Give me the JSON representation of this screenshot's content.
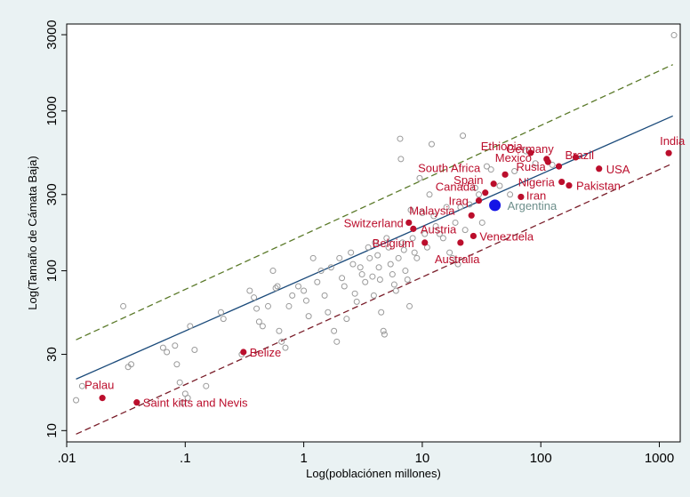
{
  "chart_data": {
    "type": "scatter",
    "xlabel": "Log(poblaciónen millones)",
    "ylabel": "Log(Tamaño de Cámata Baja)",
    "xscale": "log",
    "yscale": "log",
    "xlim": [
      0.01,
      1500
    ],
    "ylim": [
      8.5,
      3500
    ],
    "x_ticks": [
      {
        "value": 0.01,
        "label": ".01"
      },
      {
        "value": 0.1,
        "label": ".1"
      },
      {
        "value": 1,
        "label": "1"
      },
      {
        "value": 10,
        "label": "10"
      },
      {
        "value": 100,
        "label": "100"
      },
      {
        "value": 1000,
        "label": "1000"
      }
    ],
    "y_ticks": [
      {
        "value": 10,
        "label": "10"
      },
      {
        "value": 30,
        "label": "30"
      },
      {
        "value": 100,
        "label": "100"
      },
      {
        "value": 300,
        "label": "300"
      },
      {
        "value": 1000,
        "label": "1000"
      },
      {
        "value": 3000,
        "label": "3000"
      }
    ],
    "grid": false,
    "colors": {
      "background": "#eaf2f3",
      "plot_background": "#ffffff",
      "other_points": "#9a9a9a",
      "labeled_points": "#bb0e2c",
      "highlight_point": "#1414e6",
      "highlight_label": "#6d8f8b",
      "fit_line": "#1a4a7a",
      "upper_line": "#5b7a2a",
      "lower_line": "#7a1e2a"
    },
    "lines": [
      {
        "style": "solid",
        "x": [
          0.012,
          1300
        ],
        "y": [
          21,
          930
        ]
      },
      {
        "style": "dashed",
        "x": [
          0.012,
          1300
        ],
        "y": [
          37,
          1950
        ]
      },
      {
        "style": "dashed",
        "x": [
          0.012,
          1300
        ],
        "y": [
          9.5,
          470
        ]
      }
    ],
    "labeled_points": [
      {
        "name": "India",
        "x": 1200,
        "y": 545
      },
      {
        "name": "Ethiopia",
        "x": 82,
        "y": 547
      },
      {
        "name": "Germany",
        "x": 115,
        "y": 480
      },
      {
        "name": "Mexico",
        "x": 112,
        "y": 500
      },
      {
        "name": "Brazil",
        "x": 197,
        "y": 513
      },
      {
        "name": "Rusia",
        "x": 142,
        "y": 450
      },
      {
        "name": "USA",
        "x": 310,
        "y": 435
      },
      {
        "name": "South Africa",
        "x": 50,
        "y": 400
      },
      {
        "name": "Nigeria",
        "x": 150,
        "y": 360
      },
      {
        "name": "Pakistan",
        "x": 173,
        "y": 342
      },
      {
        "name": "Spain",
        "x": 40,
        "y": 350
      },
      {
        "name": "Canada",
        "x": 34,
        "y": 308
      },
      {
        "name": "Iran",
        "x": 68,
        "y": 290
      },
      {
        "name": "Iraq",
        "x": 30,
        "y": 275
      },
      {
        "name": "Malaysia",
        "x": 26,
        "y": 222
      },
      {
        "name": "Switzerland",
        "x": 7.7,
        "y": 200
      },
      {
        "name": "Austria",
        "x": 8.4,
        "y": 183
      },
      {
        "name": "Venezuela",
        "x": 27,
        "y": 165
      },
      {
        "name": "Belgium",
        "x": 10.5,
        "y": 150
      },
      {
        "name": "Australia",
        "x": 21,
        "y": 150
      },
      {
        "name": "Belize",
        "x": 0.31,
        "y": 31
      },
      {
        "name": "Palau",
        "x": 0.02,
        "y": 16
      },
      {
        "name": "Saint kitts and Nevis",
        "x": 0.039,
        "y": 15
      }
    ],
    "highlight_point": {
      "name": "Argentina",
      "x": 41,
      "y": 257
    },
    "other_points": [
      [
        0.012,
        15.5
      ],
      [
        0.0135,
        19
      ],
      [
        0.03,
        60
      ],
      [
        0.033,
        25
      ],
      [
        0.035,
        26
      ],
      [
        0.065,
        33
      ],
      [
        0.07,
        31
      ],
      [
        0.082,
        34
      ],
      [
        0.085,
        26
      ],
      [
        0.09,
        20
      ],
      [
        0.095,
        15
      ],
      [
        0.1,
        17
      ],
      [
        0.105,
        16
      ],
      [
        0.11,
        45
      ],
      [
        0.12,
        32
      ],
      [
        0.15,
        19
      ],
      [
        0.2,
        55
      ],
      [
        0.21,
        50
      ],
      [
        0.3,
        30
      ],
      [
        0.35,
        75
      ],
      [
        0.38,
        68
      ],
      [
        0.4,
        58
      ],
      [
        0.42,
        48
      ],
      [
        0.45,
        45
      ],
      [
        0.5,
        60
      ],
      [
        0.55,
        100
      ],
      [
        0.58,
        78
      ],
      [
        0.6,
        80
      ],
      [
        0.62,
        42
      ],
      [
        0.65,
        36
      ],
      [
        0.7,
        33
      ],
      [
        0.75,
        60
      ],
      [
        0.8,
        70
      ],
      [
        0.9,
        80
      ],
      [
        1.0,
        75
      ],
      [
        1.05,
        65
      ],
      [
        1.1,
        52
      ],
      [
        1.2,
        120
      ],
      [
        1.3,
        85
      ],
      [
        1.4,
        100
      ],
      [
        1.5,
        70
      ],
      [
        1.6,
        55
      ],
      [
        1.7,
        105
      ],
      [
        1.8,
        42
      ],
      [
        1.9,
        36
      ],
      [
        2.0,
        120
      ],
      [
        2.1,
        90
      ],
      [
        2.2,
        80
      ],
      [
        2.3,
        50
      ],
      [
        2.5,
        130
      ],
      [
        2.6,
        110
      ],
      [
        2.7,
        72
      ],
      [
        2.8,
        64
      ],
      [
        3.0,
        105
      ],
      [
        3.1,
        95
      ],
      [
        3.3,
        85
      ],
      [
        3.5,
        140
      ],
      [
        3.6,
        120
      ],
      [
        3.8,
        92
      ],
      [
        3.9,
        70
      ],
      [
        4.0,
        150
      ],
      [
        4.2,
        125
      ],
      [
        4.3,
        105
      ],
      [
        4.4,
        88
      ],
      [
        4.5,
        55
      ],
      [
        4.7,
        42
      ],
      [
        4.8,
        40
      ],
      [
        5.0,
        160
      ],
      [
        5.2,
        140
      ],
      [
        5.4,
        110
      ],
      [
        5.6,
        95
      ],
      [
        5.8,
        82
      ],
      [
        6.0,
        75
      ],
      [
        6.3,
        120
      ],
      [
        6.5,
        670
      ],
      [
        6.6,
        500
      ],
      [
        6.8,
        150
      ],
      [
        7.0,
        135
      ],
      [
        7.2,
        100
      ],
      [
        7.5,
        88
      ],
      [
        7.8,
        60
      ],
      [
        8.0,
        240
      ],
      [
        8.3,
        160
      ],
      [
        8.6,
        130
      ],
      [
        9.0,
        120
      ],
      [
        9.5,
        380
      ],
      [
        10.0,
        230
      ],
      [
        10.5,
        170
      ],
      [
        11.0,
        140
      ],
      [
        11.5,
        300
      ],
      [
        12.0,
        620
      ],
      [
        12.5,
        220
      ],
      [
        13.0,
        190
      ],
      [
        14.0,
        170
      ],
      [
        15.0,
        160
      ],
      [
        16.0,
        250
      ],
      [
        17.0,
        130
      ],
      [
        18.0,
        120
      ],
      [
        19.0,
        200
      ],
      [
        20.0,
        110
      ],
      [
        21.0,
        250
      ],
      [
        22.0,
        700
      ],
      [
        23.0,
        180
      ],
      [
        25.0,
        260
      ],
      [
        28.0,
        330
      ],
      [
        30.0,
        300
      ],
      [
        32.0,
        200
      ],
      [
        35.0,
        450
      ],
      [
        38.0,
        430
      ],
      [
        45.0,
        340
      ],
      [
        55.0,
        300
      ],
      [
        60.0,
        420
      ],
      [
        75.0,
        560
      ],
      [
        90.0,
        470
      ],
      [
        125.0,
        460
      ],
      [
        1330.0,
        2980
      ]
    ]
  }
}
